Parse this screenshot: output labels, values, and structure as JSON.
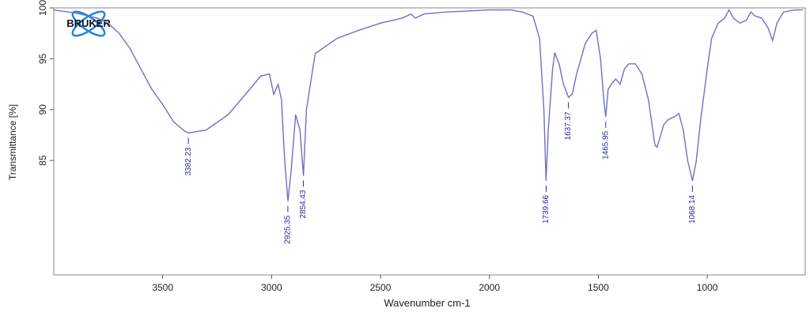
{
  "chart_data": {
    "type": "line",
    "logo": "BRUKER",
    "xlabel": "Wavenumber cm-1",
    "ylabel": "Transmittance [%]",
    "xlim": [
      4000,
      550
    ],
    "ylim": [
      73.75,
      100
    ],
    "xticks": [
      3500,
      3000,
      2500,
      2000,
      1500,
      1000
    ],
    "yticks": [
      85,
      90,
      95,
      100
    ],
    "color": "#6f6fc6",
    "x": [
      4000,
      3900,
      3800,
      3750,
      3700,
      3650,
      3600,
      3550,
      3500,
      3450,
      3400,
      3382,
      3300,
      3200,
      3100,
      3050,
      3010,
      2990,
      2970,
      2955,
      2940,
      2925,
      2910,
      2890,
      2870,
      2854,
      2840,
      2800,
      2700,
      2600,
      2500,
      2400,
      2360,
      2340,
      2300,
      2200,
      2100,
      2000,
      1900,
      1850,
      1800,
      1770,
      1750,
      1740,
      1730,
      1710,
      1700,
      1680,
      1660,
      1637,
      1620,
      1600,
      1560,
      1530,
      1510,
      1490,
      1475,
      1466,
      1455,
      1440,
      1420,
      1400,
      1380,
      1360,
      1330,
      1300,
      1270,
      1240,
      1230,
      1200,
      1180,
      1150,
      1130,
      1110,
      1090,
      1068,
      1050,
      1030,
      1000,
      980,
      950,
      920,
      900,
      880,
      850,
      820,
      800,
      780,
      750,
      720,
      700,
      680,
      650,
      600,
      560
    ],
    "values": [
      99.8,
      99.5,
      99,
      98.5,
      97.5,
      96,
      94,
      92,
      90.5,
      88.8,
      87.9,
      87.7,
      88,
      89.5,
      92,
      93.3,
      93.5,
      91.5,
      92.5,
      91,
      85,
      81,
      84,
      89.5,
      88,
      83.5,
      90,
      95.5,
      97,
      97.8,
      98.5,
      99,
      99.4,
      99,
      99.4,
      99.6,
      99.7,
      99.8,
      99.8,
      99.6,
      99.2,
      97,
      90,
      83,
      88,
      94,
      95.6,
      94.5,
      92.5,
      91.2,
      91.5,
      93.5,
      96.5,
      97.5,
      97.8,
      95,
      91,
      89.3,
      92,
      92.5,
      93,
      92.5,
      94,
      94.5,
      94.5,
      93.5,
      91,
      86.5,
      86.3,
      88.5,
      89,
      89.3,
      89.6,
      88,
      85,
      83,
      85,
      89,
      94,
      97,
      98.5,
      99,
      99.8,
      99,
      98.5,
      98.8,
      99.6,
      99.2,
      99,
      98,
      96.8,
      98.5,
      99.6,
      99.8,
      99.8
    ],
    "peaks": [
      3382.23,
      2925.35,
      2854.43,
      1739.66,
      1637.37,
      1465.95,
      1068.14
    ],
    "peak_values": [
      87.7,
      81,
      83.5,
      83,
      91.2,
      89.3,
      83
    ]
  }
}
